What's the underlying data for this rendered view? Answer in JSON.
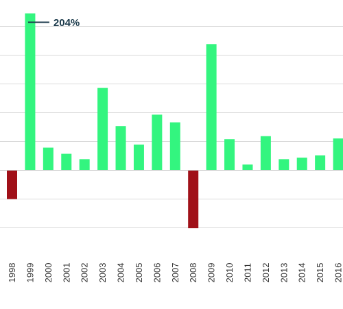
{
  "chart_data": {
    "type": "bar",
    "title": "",
    "xlabel": "",
    "ylabel": "",
    "categories": [
      "1998",
      "1999",
      "2000",
      "2001",
      "2002",
      "2003",
      "2004",
      "2005",
      "2006",
      "2007",
      "2008",
      "2009",
      "2010",
      "2011",
      "2012",
      "2013",
      "2014",
      "2015",
      "2016"
    ],
    "values": [
      -38,
      204,
      29,
      21,
      14,
      107,
      57,
      33,
      72,
      62,
      -76,
      164,
      40,
      7,
      44,
      14,
      16,
      19,
      41
    ],
    "ylim": [
      -112,
      206
    ],
    "grid_values": [
      -75,
      -37.5,
      37.5,
      75,
      112.5,
      150,
      187.5
    ],
    "grid": true,
    "legend": "none",
    "annotation": {
      "category": "1999",
      "text": "204%"
    },
    "colors": {
      "positive": "#33f57f",
      "negative": "#a01018",
      "grid": "#d9d9d9",
      "annotation": "#1b3a4b",
      "tick_label": "#333333"
    }
  }
}
